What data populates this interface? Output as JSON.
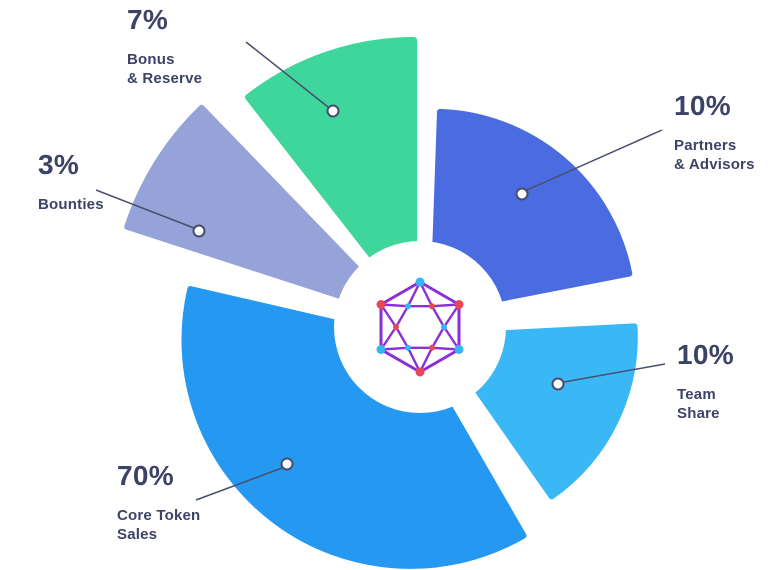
{
  "background": "#ffffff",
  "colors": {
    "text": "#3d4366",
    "leader_line": "#474e6e",
    "marker_fill": "#ffffff"
  },
  "chart_data": {
    "type": "pie",
    "unit": "%",
    "center": [
      420,
      327
    ],
    "hole_radius": 86,
    "legend_position": "callouts",
    "segments": [
      {
        "id": "bonus-reserve",
        "label": "Bonus & Reserve",
        "label_lines": [
          "Bonus",
          "& Reserve"
        ],
        "value": 7,
        "percent_label": "7%",
        "color": "#3ed69b",
        "start": -38,
        "end": 0,
        "radius": 270,
        "explode": 18,
        "marker": [
          333,
          111
        ],
        "line": [
          [
            246,
            42
          ],
          [
            328,
            107
          ]
        ]
      },
      {
        "id": "partners-advisors",
        "label": "Partners & Advisors",
        "label_lines": [
          "Partners",
          "& Advisors"
        ],
        "value": 10,
        "percent_label": "10%",
        "color": "#4a6ce0",
        "start": 2,
        "end": 79,
        "radius": 200,
        "explode": 20,
        "marker": [
          522,
          194
        ],
        "line": [
          [
            527,
            190
          ],
          [
            662,
            130
          ]
        ]
      },
      {
        "id": "team-share",
        "label": "Team Share",
        "label_lines": [
          "Team",
          "Share"
        ],
        "value": 10,
        "percent_label": "10%",
        "color": "#3ab7f5",
        "start": 87,
        "end": 145,
        "radius": 195,
        "explode": 22,
        "marker": [
          558,
          384
        ],
        "line": [
          [
            564,
            382
          ],
          [
            665,
            364
          ]
        ]
      },
      {
        "id": "core-token-sales",
        "label": "Core Token Sales",
        "label_lines": [
          "Core Token",
          "Sales"
        ],
        "value": 70,
        "percent_label": "70%",
        "color": "#2598f2",
        "start": 150,
        "end": 283,
        "radius": 226,
        "explode": 16,
        "marker": [
          287,
          464
        ],
        "line": [
          [
            282,
            468
          ],
          [
            196,
            500
          ]
        ]
      },
      {
        "id": "bounties",
        "label": "Bounties",
        "label_lines": [
          "Bounties"
        ],
        "value": 3,
        "percent_label": "3%",
        "color": "#96a3d8",
        "start": 288,
        "end": 316,
        "radius": 290,
        "explode": 20,
        "marker": [
          199,
          231
        ],
        "line": [
          [
            194,
            228
          ],
          [
            96,
            190
          ]
        ]
      }
    ]
  },
  "logo": {
    "name": "hexagon-network-logo",
    "line_color": "#8b2fd6",
    "node_cyan": "#35b6f4",
    "node_red": "#e84855",
    "outer_radius": 45,
    "inner_radius": 24
  }
}
